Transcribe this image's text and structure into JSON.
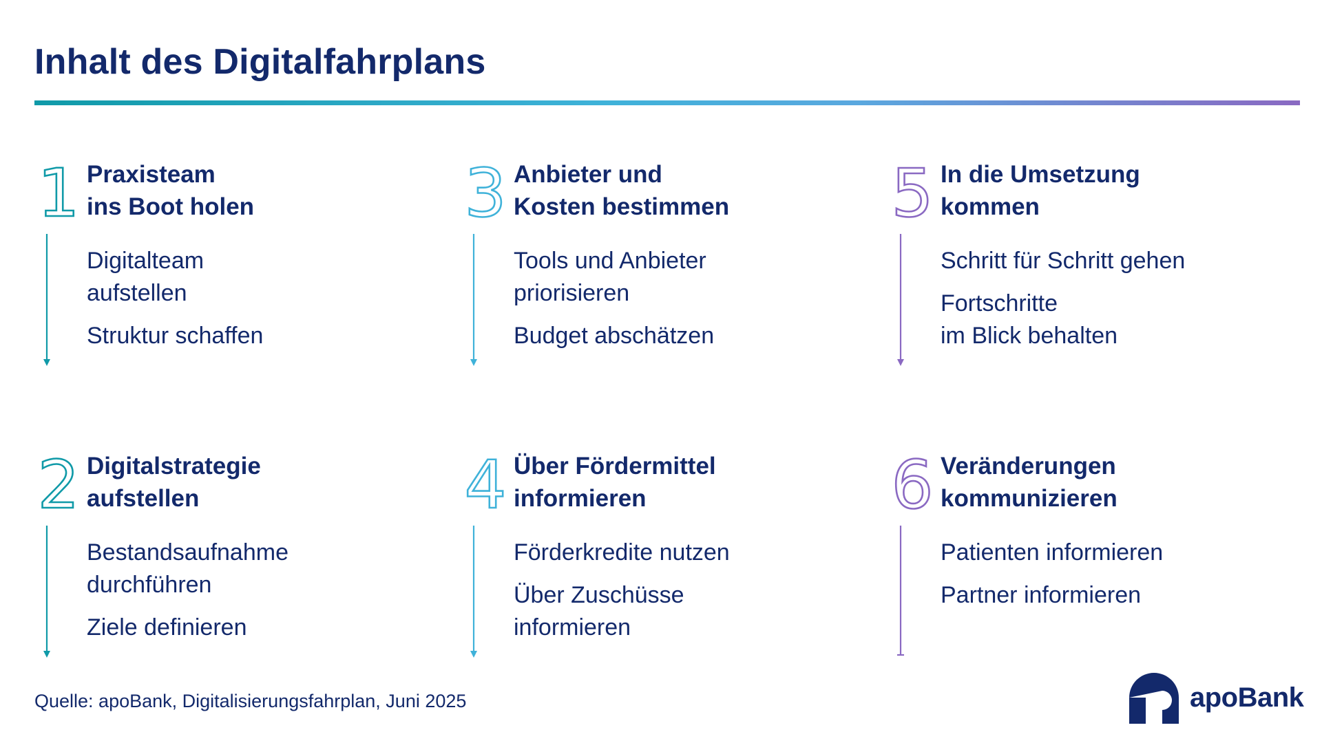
{
  "title": "Inhalt des Digitalfahrplans",
  "colors": {
    "navy": "#13296b",
    "teal": "#109aa8",
    "light_blue": "#3fb2d9",
    "purple": "#8a69c2"
  },
  "steps": [
    {
      "number": "1",
      "heading": [
        "Praxisteam",
        "ins Boot holen"
      ],
      "items": [
        [
          "Digitalteam",
          "aufstellen"
        ],
        [
          "Struktur schaffen"
        ]
      ]
    },
    {
      "number": "2",
      "heading": [
        "Digitalstrategie",
        "aufstellen"
      ],
      "items": [
        [
          "Bestandsaufnahme",
          "durchführen"
        ],
        [
          "Ziele definieren"
        ]
      ]
    },
    {
      "number": "3",
      "heading": [
        "Anbieter und",
        "Kosten bestimmen"
      ],
      "items": [
        [
          "Tools und Anbieter",
          "priorisieren"
        ],
        [
          "Budget abschätzen"
        ]
      ]
    },
    {
      "number": "4",
      "heading": [
        "Über Fördermittel",
        "informieren"
      ],
      "items": [
        [
          "Förderkredite nutzen"
        ],
        [
          "Über Zuschüsse",
          "informieren"
        ]
      ]
    },
    {
      "number": "5",
      "heading": [
        "In die Umsetzung",
        "kommen"
      ],
      "items": [
        [
          "Schritt für Schritt gehen"
        ],
        [
          "Fortschritte",
          "im Blick behalten"
        ]
      ]
    },
    {
      "number": "6",
      "heading": [
        "Veränderungen",
        "kommunizieren"
      ],
      "items": [
        [
          "Patienten informieren"
        ],
        [
          "Partner informieren"
        ]
      ]
    }
  ],
  "source": "Quelle: apoBank, Digitalisierungsfahrplan, Juni 2025",
  "logo": {
    "text": "apoBank",
    "icon": "apobank-logo-icon"
  }
}
